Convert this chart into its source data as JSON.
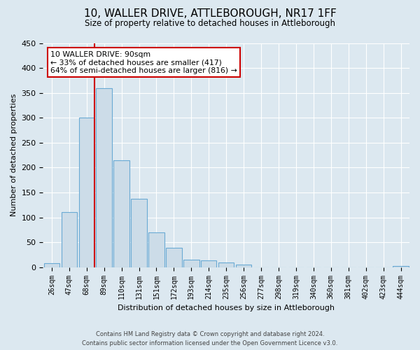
{
  "title": "10, WALLER DRIVE, ATTLEBOROUGH, NR17 1FF",
  "subtitle": "Size of property relative to detached houses in Attleborough",
  "xlabel": "Distribution of detached houses by size in Attleborough",
  "ylabel": "Number of detached properties",
  "bar_labels": [
    "26sqm",
    "47sqm",
    "68sqm",
    "89sqm",
    "110sqm",
    "131sqm",
    "151sqm",
    "172sqm",
    "193sqm",
    "214sqm",
    "235sqm",
    "256sqm",
    "277sqm",
    "298sqm",
    "319sqm",
    "340sqm",
    "360sqm",
    "381sqm",
    "402sqm",
    "423sqm",
    "444sqm"
  ],
  "bar_values": [
    8,
    110,
    300,
    360,
    215,
    137,
    70,
    39,
    15,
    13,
    10,
    5,
    0,
    0,
    0,
    0,
    0,
    0,
    0,
    0,
    2
  ],
  "bar_color": "#ccdce8",
  "bar_edge_color": "#6aaad4",
  "property_line_after_index": 2,
  "property_line_color": "#cc0000",
  "ylim": [
    0,
    450
  ],
  "yticks": [
    0,
    50,
    100,
    150,
    200,
    250,
    300,
    350,
    400,
    450
  ],
  "annotation_text": "10 WALLER DRIVE: 90sqm\n← 33% of detached houses are smaller (417)\n64% of semi-detached houses are larger (816) →",
  "annotation_box_color": "#ffffff",
  "annotation_box_edge": "#cc0000",
  "footer_line1": "Contains HM Land Registry data © Crown copyright and database right 2024.",
  "footer_line2": "Contains public sector information licensed under the Open Government Licence v3.0.",
  "background_color": "#dce8f0",
  "plot_bg_color": "#dce8f0",
  "grid_color": "#ffffff"
}
